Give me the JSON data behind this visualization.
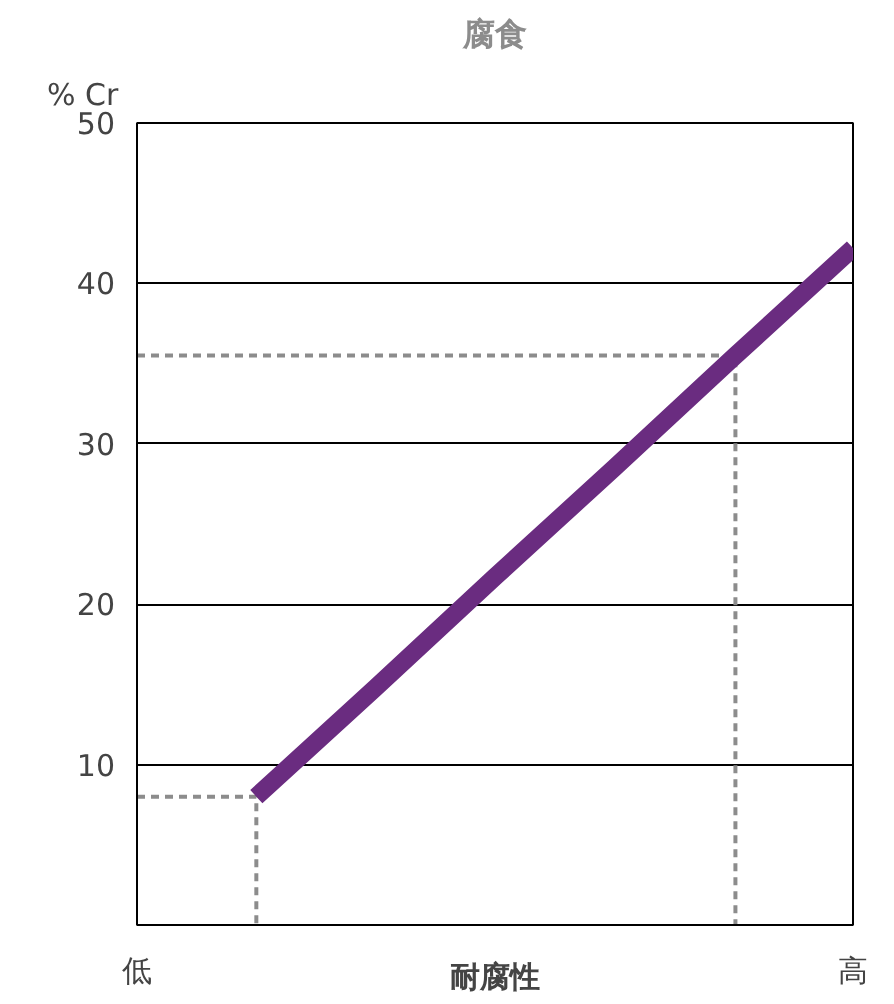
{
  "chart_data": {
    "type": "line",
    "title": "腐食",
    "xlabel": "耐腐性",
    "ylabel": "% Cr",
    "categories": [
      "低",
      null,
      null,
      null,
      null,
      null,
      "高"
    ],
    "ylim": [
      0,
      50
    ],
    "yticks": [
      10,
      20,
      30,
      40,
      50
    ],
    "grid": "y",
    "marker": "none",
    "line_style": "solid",
    "series": [
      {
        "color": "#6a2c80",
        "values": [
          null,
          8,
          14.8,
          21.7,
          28.5,
          35.4,
          42.2
        ]
      }
    ],
    "ref_lines": [
      {
        "axis": "y",
        "value": 8,
        "color": "#8c8c8c",
        "line_style": "dashed"
      },
      {
        "axis": "y",
        "value": 35.5,
        "color": "#8c8c8c",
        "line_style": "dashed"
      }
    ]
  }
}
